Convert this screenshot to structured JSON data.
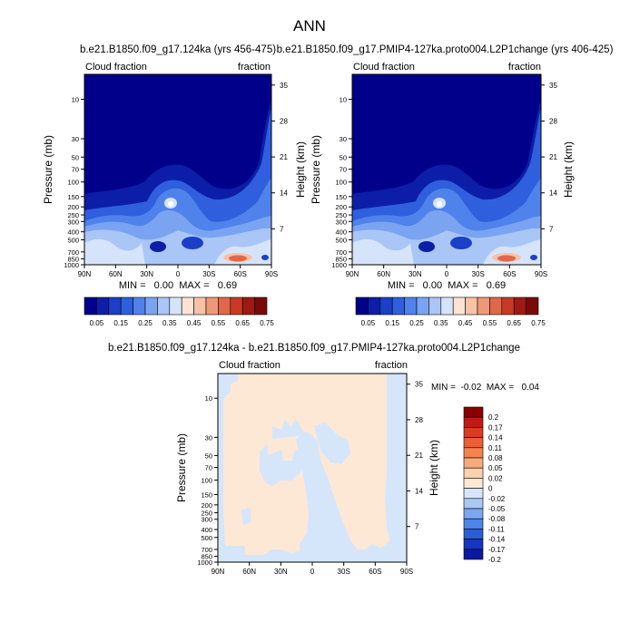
{
  "figure_title": "ANN",
  "panels": [
    {
      "title": "b.e21.B1850.f09_g17.124ka (yrs 456-475)",
      "left_label": "Cloud fraction",
      "right_label": "fraction",
      "ylabel": "Pressure (mb)",
      "ylabel_right": "Height (km)",
      "minmax": "MIN =   0.00  MAX =   0.69"
    },
    {
      "title": "b.e21.B1850.f09_g17.PMIP4-127ka.proto004.L2P1change (yrs 406-425)",
      "left_label": "Cloud fraction",
      "right_label": "fraction",
      "ylabel": "Pressure (mb)",
      "ylabel_right": "Height (km)",
      "minmax": "MIN =   0.00  MAX =   0.69"
    },
    {
      "title": "b.e21.B1850.f09_g17.124ka - b.e21.B1850.f09_g17.PMIP4-127ka.proto004.L2P1change",
      "left_label": "Cloud fraction",
      "right_label": "fraction",
      "ylabel": "Pressure (mb)",
      "ylabel_right": "Height (km)",
      "minmax": "MIN =  -0.02  MAX =   0.04"
    }
  ],
  "chart_data": [
    {
      "type": "heatmap",
      "subtype": "latitude-pressure contour",
      "title": "b.e21.B1850.f09_g17.124ka (yrs 456-475)",
      "ylabel": "Pressure (mb)",
      "ylabel_right": "Height (km)",
      "x_ticks": [
        "90N",
        "60N",
        "30N",
        "0",
        "30S",
        "60S",
        "90S"
      ],
      "y_ticks": [
        "10",
        "30",
        "50",
        "70",
        "100",
        "150",
        "200",
        "250",
        "300",
        "400",
        "500",
        "700",
        "850",
        "1000"
      ],
      "y_ticks_right": [
        "35",
        "28",
        "21",
        "14",
        "7"
      ],
      "y_scale": "log",
      "min": 0.0,
      "max": 0.69,
      "colorbar_labels": [
        "0.05",
        "0.15",
        "0.25",
        "0.35",
        "0.45",
        "0.55",
        "0.65",
        "0.75"
      ],
      "colorbar_orientation": "horizontal"
    },
    {
      "type": "heatmap",
      "subtype": "latitude-pressure contour",
      "title": "b.e21.B1850.f09_g17.PMIP4-127ka.proto004.L2P1change (yrs 406-425)",
      "ylabel": "Pressure (mb)",
      "ylabel_right": "Height (km)",
      "x_ticks": [
        "90N",
        "60N",
        "30N",
        "0",
        "30S",
        "60S",
        "90S"
      ],
      "y_ticks": [
        "10",
        "30",
        "50",
        "70",
        "100",
        "150",
        "200",
        "250",
        "300",
        "400",
        "500",
        "700",
        "850",
        "1000"
      ],
      "y_ticks_right": [
        "35",
        "28",
        "21",
        "14",
        "7"
      ],
      "y_scale": "log",
      "min": 0.0,
      "max": 0.69,
      "colorbar_labels": [
        "0.05",
        "0.15",
        "0.25",
        "0.35",
        "0.45",
        "0.55",
        "0.65",
        "0.75"
      ],
      "colorbar_orientation": "horizontal"
    },
    {
      "type": "heatmap",
      "subtype": "latitude-pressure contour difference",
      "title": "b.e21.B1850.f09_g17.124ka - b.e21.B1850.f09_g17.PMIP4-127ka.proto004.L2P1change",
      "ylabel": "Pressure (mb)",
      "ylabel_right": "Height (km)",
      "x_ticks": [
        "90N",
        "60N",
        "30N",
        "0",
        "30S",
        "60S",
        "90S"
      ],
      "y_ticks": [
        "10",
        "30",
        "50",
        "70",
        "100",
        "150",
        "200",
        "250",
        "300",
        "400",
        "500",
        "700",
        "850",
        "1000"
      ],
      "y_ticks_right": [
        "35",
        "28",
        "21",
        "14",
        "7"
      ],
      "y_scale": "log",
      "min": -0.02,
      "max": 0.04,
      "colorbar_labels": [
        "0.2",
        "0.17",
        "0.14",
        "0.11",
        "0.08",
        "0.05",
        "0.02",
        "0",
        "-0.02",
        "-0.05",
        "-0.08",
        "-0.11",
        "-0.14",
        "-0.17",
        "-0.2"
      ],
      "colorbar_orientation": "vertical"
    }
  ],
  "colormaps": {
    "abs": [
      "#00008b",
      "#0c1ea8",
      "#1b3fc6",
      "#2f5fdc",
      "#4f82ea",
      "#7aa4f2",
      "#a9c6f7",
      "#d6e4fb",
      "#fde3d3",
      "#f7c2a7",
      "#ef9878",
      "#e0684a",
      "#c83a26",
      "#9e1a12",
      "#7a0a0a"
    ],
    "diff": [
      "#8b0000",
      "#bf1b12",
      "#dd3a22",
      "#ec5e34",
      "#f3844e",
      "#f8aa7a",
      "#fbd0ae",
      "#fde8d6",
      "#d6e6fa",
      "#a9c8f6",
      "#7da8f1",
      "#4f84e8",
      "#2c5dd8",
      "#1537bf",
      "#0a1a9a"
    ]
  }
}
